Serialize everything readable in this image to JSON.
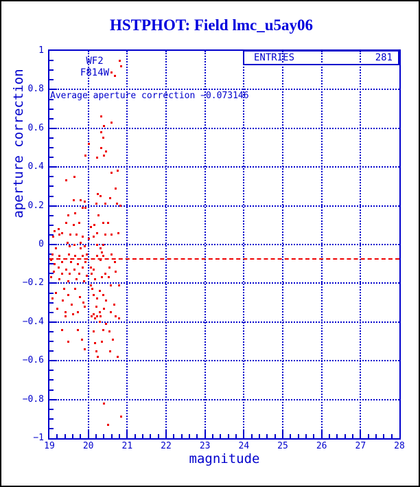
{
  "title": "HSTPHOT: Field lmc_u5ay06",
  "stats_box": {
    "label": "ENTRIES",
    "value": "281"
  },
  "annotations": {
    "camera": "WF2",
    "filter": "F814W",
    "average_line_text": "Average aperture correction −0.073146"
  },
  "colors": {
    "axis_blue": "#0000cc",
    "title_blue": "#0000dd",
    "point_red": "#ee0000",
    "mean_line_red": "#ee0000",
    "frame_black": "#000000",
    "background": "#ffffff"
  },
  "chart_data": {
    "type": "scatter",
    "title": "HSTPHOT: Field lmc_u5ay06",
    "xlabel": "magnitude",
    "ylabel": "aperture correction",
    "xlim": [
      19,
      28
    ],
    "ylim": [
      -1,
      1
    ],
    "grid": true,
    "legend": "none",
    "entries": 281,
    "mean_line_y": -0.073146,
    "x_tick_values": [
      19,
      20,
      21,
      22,
      23,
      24,
      25,
      26,
      27,
      28
    ],
    "x_tick_labels": [
      "19",
      "20",
      "21",
      "22",
      "23",
      "24",
      "25",
      "26",
      "27",
      "28"
    ],
    "x_minor_step": 0.2,
    "y_tick_values": [
      1,
      0.8,
      0.6,
      0.4,
      0.2,
      0,
      -0.2,
      -0.4,
      -0.6,
      -0.8,
      -1
    ],
    "y_tick_labels": [
      "1",
      "0.8",
      "0.6",
      "0.4",
      "0.2",
      "0",
      "−0.2",
      "−0.4",
      "−0.6",
      "−0.8",
      "−1"
    ],
    "y_minor_step": 0.05,
    "v_gridlines": [
      20,
      21,
      22,
      23,
      24,
      25,
      26,
      27
    ],
    "h_gridlines": [
      0.8,
      0.6,
      0.4,
      0.2,
      0,
      -0.2,
      -0.4,
      -0.6,
      -0.8
    ],
    "points": [
      [
        20.81,
        0.95
      ],
      [
        20.85,
        0.92
      ],
      [
        20.6,
        0.89
      ],
      [
        20.68,
        0.87
      ],
      [
        20.34,
        0.66
      ],
      [
        20.59,
        0.63
      ],
      [
        20.41,
        0.61
      ],
      [
        20.34,
        0.58
      ],
      [
        20.39,
        0.55
      ],
      [
        20.02,
        0.52
      ],
      [
        20.34,
        0.5
      ],
      [
        20.45,
        0.48
      ],
      [
        19.92,
        0.46
      ],
      [
        20.23,
        0.45
      ],
      [
        20.41,
        0.46
      ],
      [
        20.6,
        0.37
      ],
      [
        20.76,
        0.38
      ],
      [
        19.65,
        0.35
      ],
      [
        19.44,
        0.33
      ],
      [
        20.7,
        0.29
      ],
      [
        20.25,
        0.26
      ],
      [
        20.32,
        0.25
      ],
      [
        19.62,
        0.23
      ],
      [
        19.8,
        0.23
      ],
      [
        19.9,
        0.22
      ],
      [
        20.57,
        0.24
      ],
      [
        20.2,
        0.21
      ],
      [
        20.43,
        0.21
      ],
      [
        20.73,
        0.21
      ],
      [
        20.83,
        0.2
      ],
      [
        19.85,
        0.19
      ],
      [
        19.92,
        0.19
      ],
      [
        19.49,
        0.15
      ],
      [
        19.67,
        0.16
      ],
      [
        20.27,
        0.15
      ],
      [
        19.44,
        0.11
      ],
      [
        19.23,
        0.08
      ],
      [
        19.14,
        0.07
      ],
      [
        19.32,
        0.06
      ],
      [
        19.62,
        0.1
      ],
      [
        19.76,
        0.11
      ],
      [
        20.06,
        0.09
      ],
      [
        20.15,
        0.1
      ],
      [
        20.38,
        0.11
      ],
      [
        20.5,
        0.11
      ],
      [
        20.23,
        0.06
      ],
      [
        19.53,
        0.05
      ],
      [
        19.69,
        0.05
      ],
      [
        19.86,
        0.04
      ],
      [
        19.09,
        0.04
      ],
      [
        19.25,
        0.05
      ],
      [
        20.01,
        0.03
      ],
      [
        20.13,
        0.04
      ],
      [
        20.43,
        0.05
      ],
      [
        20.6,
        0.05
      ],
      [
        20.78,
        0.06
      ],
      [
        19.46,
        0.01
      ],
      [
        19.64,
        0.0
      ],
      [
        19.81,
        0.01
      ],
      [
        20.23,
        0.0
      ],
      [
        20.38,
        0.0
      ],
      [
        19.17,
        -0.02
      ],
      [
        19.52,
        -0.01
      ],
      [
        19.8,
        -0.02
      ],
      [
        19.9,
        -0.01
      ],
      [
        19.08,
        -0.05
      ],
      [
        19.25,
        -0.06
      ],
      [
        19.51,
        -0.05
      ],
      [
        19.67,
        -0.06
      ],
      [
        19.86,
        -0.06
      ],
      [
        19.96,
        -0.05
      ],
      [
        19.04,
        -0.08
      ],
      [
        19.32,
        -0.09
      ],
      [
        19.14,
        -0.1
      ],
      [
        19.55,
        -0.09
      ],
      [
        19.73,
        -0.1
      ],
      [
        19.93,
        -0.09
      ],
      [
        19.23,
        -0.12
      ],
      [
        19.44,
        -0.13
      ],
      [
        19.64,
        -0.13
      ],
      [
        19.85,
        -0.12
      ],
      [
        19.11,
        -0.14
      ],
      [
        19.32,
        -0.15
      ],
      [
        19.52,
        -0.15
      ],
      [
        19.76,
        -0.15
      ],
      [
        19.96,
        -0.16
      ],
      [
        19.05,
        -0.17
      ],
      [
        19.26,
        -0.18
      ],
      [
        19.48,
        -0.19
      ],
      [
        19.7,
        -0.18
      ],
      [
        19.89,
        -0.19
      ],
      [
        19.38,
        -0.23
      ],
      [
        19.67,
        -0.23
      ],
      [
        19.17,
        -0.25
      ],
      [
        19.49,
        -0.26
      ],
      [
        19.79,
        -0.27
      ],
      [
        19.08,
        -0.28
      ],
      [
        19.35,
        -0.29
      ],
      [
        19.58,
        -0.31
      ],
      [
        19.88,
        -0.3
      ],
      [
        19.2,
        -0.33
      ],
      [
        19.9,
        -0.32
      ],
      [
        19.41,
        -0.35
      ],
      [
        19.73,
        -0.35
      ],
      [
        20.32,
        -0.02
      ],
      [
        20.35,
        -0.04
      ],
      [
        20.23,
        -0.06
      ],
      [
        20.39,
        -0.06
      ],
      [
        20.6,
        -0.05
      ],
      [
        20.31,
        -0.08
      ],
      [
        20.68,
        -0.09
      ],
      [
        20.07,
        -0.12
      ],
      [
        20.13,
        -0.13
      ],
      [
        20.54,
        -0.12
      ],
      [
        20.09,
        -0.15
      ],
      [
        20.43,
        -0.15
      ],
      [
        20.7,
        -0.14
      ],
      [
        20.35,
        -0.17
      ],
      [
        20.52,
        -0.17
      ],
      [
        20.17,
        -0.18
      ],
      [
        20.07,
        -0.21
      ],
      [
        20.58,
        -0.21
      ],
      [
        20.79,
        -0.21
      ],
      [
        20.11,
        -0.23
      ],
      [
        20.29,
        -0.24
      ],
      [
        20.14,
        -0.26
      ],
      [
        20.38,
        -0.26
      ],
      [
        20.23,
        -0.28
      ],
      [
        20.46,
        -0.29
      ],
      [
        20.67,
        -0.31
      ],
      [
        20.2,
        -0.32
      ],
      [
        20.41,
        -0.33
      ],
      [
        20.29,
        -0.35
      ],
      [
        20.58,
        -0.35
      ],
      [
        20.14,
        -0.36
      ],
      [
        19.41,
        -0.37
      ],
      [
        19.61,
        -0.36
      ],
      [
        20.08,
        -0.37
      ],
      [
        20.17,
        -0.38
      ],
      [
        20.23,
        -0.37
      ],
      [
        20.32,
        -0.37
      ],
      [
        20.7,
        -0.37
      ],
      [
        20.79,
        -0.38
      ],
      [
        20.29,
        -0.4
      ],
      [
        20.46,
        -0.41
      ],
      [
        19.33,
        -0.44
      ],
      [
        19.73,
        -0.44
      ],
      [
        20.14,
        -0.45
      ],
      [
        20.38,
        -0.44
      ],
      [
        20.55,
        -0.45
      ],
      [
        19.49,
        -0.5
      ],
      [
        19.83,
        -0.49
      ],
      [
        20.17,
        -0.51
      ],
      [
        20.35,
        -0.5
      ],
      [
        20.64,
        -0.49
      ],
      [
        19.9,
        -0.54
      ],
      [
        20.2,
        -0.55
      ],
      [
        20.56,
        -0.55
      ],
      [
        20.25,
        -0.58
      ],
      [
        20.76,
        -0.58
      ],
      [
        20.41,
        -0.82
      ],
      [
        20.85,
        -0.89
      ],
      [
        20.51,
        -0.93
      ]
    ]
  }
}
